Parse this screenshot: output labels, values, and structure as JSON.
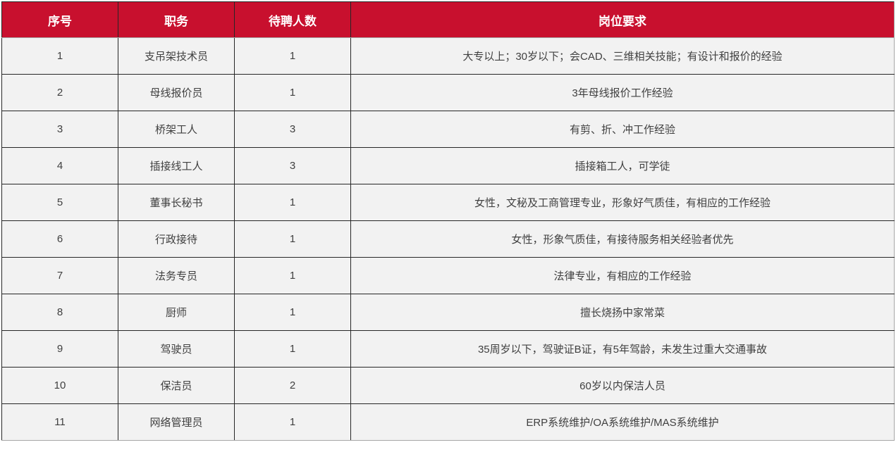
{
  "colors": {
    "header_bg": "#c8102e",
    "header_text": "#ffffff",
    "row_light": "#f2f2f2",
    "row_gray_light": "#d9d9d9",
    "row_gray_medium": "#bfbfbf",
    "cell_border": "#262626",
    "body_text": "#404040"
  },
  "table": {
    "header": [
      "序号",
      "职务",
      "待聘人数",
      "岗位要求"
    ],
    "rows": [
      {
        "no": "1",
        "position": "支吊架技术员",
        "count": "1",
        "requirements": "大专以上；30岁以下；会CAD、三维相关技能；有设计和报价的经验",
        "shade": "a"
      },
      {
        "no": "2",
        "position": "母线报价员",
        "count": "1",
        "requirements": "3年母线报价工作经验",
        "shade": "b"
      },
      {
        "no": "3",
        "position": "桥架工人",
        "count": "3",
        "requirements": "有剪、折、冲工作经验",
        "shade": "a"
      },
      {
        "no": "4",
        "position": "插接线工人",
        "count": "3",
        "requirements": "插接箱工人，可学徒",
        "shade": "c"
      },
      {
        "no": "5",
        "position": "董事长秘书",
        "count": "1",
        "requirements": "女性，文秘及工商管理专业，形象好气质佳，有相应的工作经验",
        "shade": "a"
      },
      {
        "no": "6",
        "position": "行政接待",
        "count": "1",
        "requirements": "女性，形象气质佳，有接待服务相关经验者优先",
        "shade": "c"
      },
      {
        "no": "7",
        "position": "法务专员",
        "count": "1",
        "requirements": "法律专业，有相应的工作经验",
        "shade": "a"
      },
      {
        "no": "8",
        "position": "厨师",
        "count": "1",
        "requirements": "擅长烧扬中家常菜",
        "shade": "c"
      },
      {
        "no": "9",
        "position": "驾驶员",
        "count": "1",
        "requirements": "35周岁以下，驾驶证B证，有5年驾龄，未发生过重大交通事故",
        "shade": "a"
      },
      {
        "no": "10",
        "position": "保洁员",
        "count": "2",
        "requirements": "60岁以内保洁人员",
        "shade": "c"
      },
      {
        "no": "11",
        "position": "网络管理员",
        "count": "1",
        "requirements": "ERP系统维护/OA系统维护/MAS系统维护",
        "shade": "a"
      }
    ]
  }
}
